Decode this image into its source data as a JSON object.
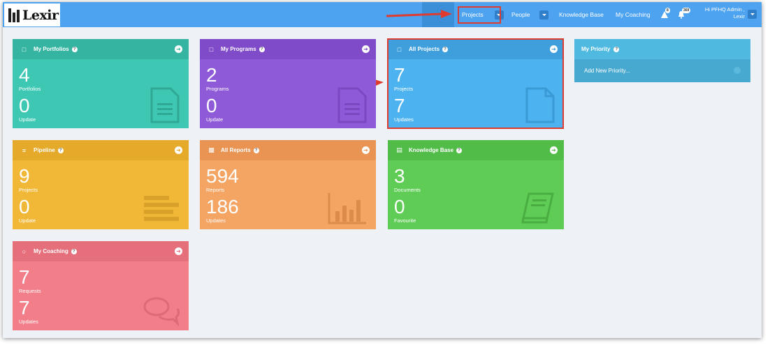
{
  "brand": {
    "logo_text": "Lexir"
  },
  "nav": {
    "projects": "Projects",
    "people": "People",
    "knowledge_base": "Knowledge Base",
    "my_coaching": "My Coaching",
    "alert_count": "8",
    "notification_count": "369",
    "user_greeting": "Hi PFHQ Admin ,",
    "user_org": "Lexir"
  },
  "cards": {
    "portfolios": {
      "title": "My Portfolios",
      "value1": "4",
      "label1": "Portfolios",
      "value2": "0",
      "label2": "Update",
      "color": "#3ec8b4"
    },
    "programs": {
      "title": "My Programs",
      "value1": "2",
      "label1": "Programs",
      "value2": "0",
      "label2": "Update",
      "color": "#8f5ad8"
    },
    "projects": {
      "title": "All Projects",
      "value1": "7",
      "label1": "Projects",
      "value2": "7",
      "label2": "Updates",
      "color": "#4cb2f0"
    },
    "pipeline": {
      "title": "Pipeline",
      "value1": "9",
      "label1": "Projects",
      "value2": "0",
      "label2": "Update",
      "color": "#f1b838"
    },
    "reports": {
      "title": "All Reports",
      "value1": "594",
      "label1": "Reports",
      "value2": "186",
      "label2": "Updates",
      "color": "#f4a463"
    },
    "knowledge": {
      "title": "Knowledge Base",
      "value1": "3",
      "label1": "Documents",
      "value2": "0",
      "label2": "Favourite",
      "color": "#5fcd55"
    },
    "coaching": {
      "title": "My Coaching",
      "value1": "7",
      "label1": "Requests",
      "value2": "7",
      "label2": "Updates",
      "color": "#f17e88"
    }
  },
  "priority": {
    "title": "My Priority",
    "add_label": "Add New Priority..."
  }
}
